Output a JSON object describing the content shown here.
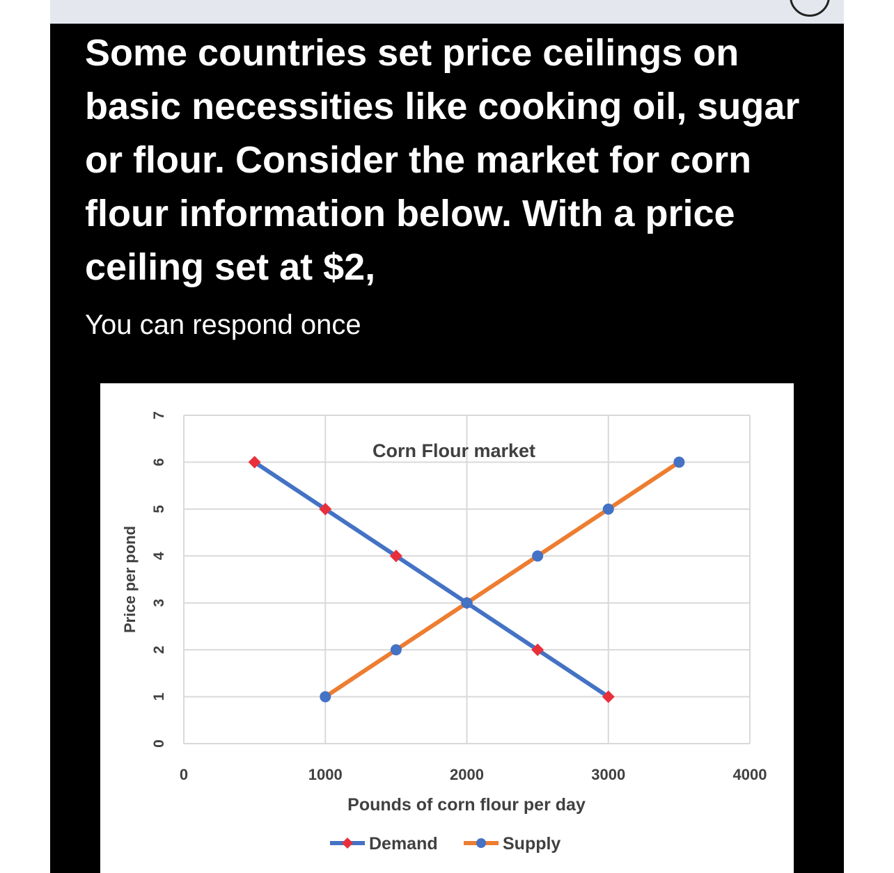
{
  "question": {
    "text": "Some countries set price ceilings on basic necessities like cooking oil, sugar or flour. Consider the market for corn flour information below. With a price ceiling set at $2,",
    "note": "You can respond once"
  },
  "chart_data": {
    "type": "line",
    "title": "Corn Flour market",
    "xlabel": "Pounds of corn flour per day",
    "ylabel": "Price per pond",
    "xlim": [
      0,
      4000
    ],
    "ylim": [
      0,
      7
    ],
    "x_ticks": [
      "0",
      "1000",
      "2000",
      "3000",
      "4000"
    ],
    "y_ticks": [
      "0",
      "1",
      "2",
      "3",
      "4",
      "5",
      "6",
      "7"
    ],
    "grid": true,
    "legend_position": "bottom",
    "series": [
      {
        "name": "Demand",
        "color": "#4472c4",
        "marker_color": "#e8303a",
        "marker": "diamond",
        "points": [
          [
            500,
            6
          ],
          [
            1000,
            5
          ],
          [
            1500,
            4
          ],
          [
            2000,
            3
          ],
          [
            2500,
            2
          ],
          [
            3000,
            1
          ]
        ]
      },
      {
        "name": "Supply",
        "color": "#ed7d31",
        "marker_color": "#4472c4",
        "marker": "circle",
        "points": [
          [
            1000,
            1
          ],
          [
            1500,
            2
          ],
          [
            2000,
            3
          ],
          [
            2500,
            4
          ],
          [
            3000,
            5
          ],
          [
            3500,
            6
          ]
        ]
      }
    ]
  }
}
